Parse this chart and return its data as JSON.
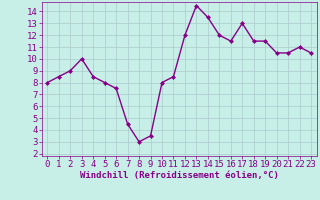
{
  "x": [
    0,
    1,
    2,
    3,
    4,
    5,
    6,
    7,
    8,
    9,
    10,
    11,
    12,
    13,
    14,
    15,
    16,
    17,
    18,
    19,
    20,
    21,
    22,
    23
  ],
  "y": [
    8,
    8.5,
    9,
    10,
    8.5,
    8,
    7.5,
    4.5,
    3,
    3.5,
    8,
    8.5,
    12,
    14.5,
    13.5,
    12,
    11.5,
    13,
    11.5,
    11.5,
    10.5,
    10.5,
    11,
    10.5
  ],
  "line_color": "#880088",
  "marker": "D",
  "marker_size": 2,
  "bg_color": "#c8eee8",
  "grid_color": "#aacccc",
  "xlabel": "Windchill (Refroidissement éolien,°C)",
  "xlabel_color": "#880088",
  "tick_color": "#880088",
  "xlim": [
    -0.5,
    23.5
  ],
  "ylim": [
    1.8,
    14.8
  ],
  "yticks": [
    2,
    3,
    4,
    5,
    6,
    7,
    8,
    9,
    10,
    11,
    12,
    13,
    14
  ],
  "xticks": [
    0,
    1,
    2,
    3,
    4,
    5,
    6,
    7,
    8,
    9,
    10,
    11,
    12,
    13,
    14,
    15,
    16,
    17,
    18,
    19,
    20,
    21,
    22,
    23
  ],
  "line_width": 1.0,
  "font_size": 6.5
}
